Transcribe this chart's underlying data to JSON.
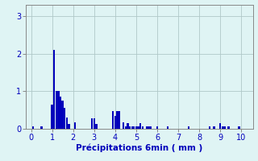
{
  "xlabel": "Précipitations 6min ( mm )",
  "background_color": "#dff4f4",
  "bar_color": "#0000bb",
  "grid_color": "#b0c8c8",
  "spine_color": "#888888",
  "tick_color": "#0000bb",
  "xlim": [
    -0.25,
    10.55
  ],
  "ylim": [
    0,
    3.3
  ],
  "yticks": [
    0,
    1,
    2,
    3
  ],
  "xticks": [
    0,
    1,
    2,
    3,
    4,
    5,
    6,
    7,
    8,
    9,
    10
  ],
  "bar_width": 0.09,
  "bars": [
    [
      0.1,
      0.07
    ],
    [
      0.5,
      0.07
    ],
    [
      1.0,
      0.65
    ],
    [
      1.1,
      2.1
    ],
    [
      1.2,
      1.0
    ],
    [
      1.3,
      1.0
    ],
    [
      1.4,
      0.85
    ],
    [
      1.5,
      0.75
    ],
    [
      1.6,
      0.55
    ],
    [
      1.7,
      0.3
    ],
    [
      1.8,
      0.12
    ],
    [
      2.1,
      0.18
    ],
    [
      2.9,
      0.27
    ],
    [
      3.0,
      0.27
    ],
    [
      3.1,
      0.12
    ],
    [
      3.9,
      0.47
    ],
    [
      4.0,
      0.35
    ],
    [
      4.1,
      0.47
    ],
    [
      4.2,
      0.47
    ],
    [
      4.4,
      0.18
    ],
    [
      4.5,
      0.07
    ],
    [
      4.6,
      0.14
    ],
    [
      4.7,
      0.07
    ],
    [
      4.8,
      0.07
    ],
    [
      4.9,
      0.07
    ],
    [
      5.0,
      0.07
    ],
    [
      5.1,
      0.07
    ],
    [
      5.2,
      0.14
    ],
    [
      5.3,
      0.07
    ],
    [
      5.5,
      0.07
    ],
    [
      5.6,
      0.07
    ],
    [
      5.7,
      0.07
    ],
    [
      6.0,
      0.07
    ],
    [
      6.5,
      0.07
    ],
    [
      7.5,
      0.07
    ],
    [
      8.5,
      0.07
    ],
    [
      8.7,
      0.07
    ],
    [
      9.0,
      0.14
    ],
    [
      9.1,
      0.07
    ],
    [
      9.2,
      0.07
    ],
    [
      9.4,
      0.07
    ],
    [
      9.9,
      0.07
    ]
  ]
}
